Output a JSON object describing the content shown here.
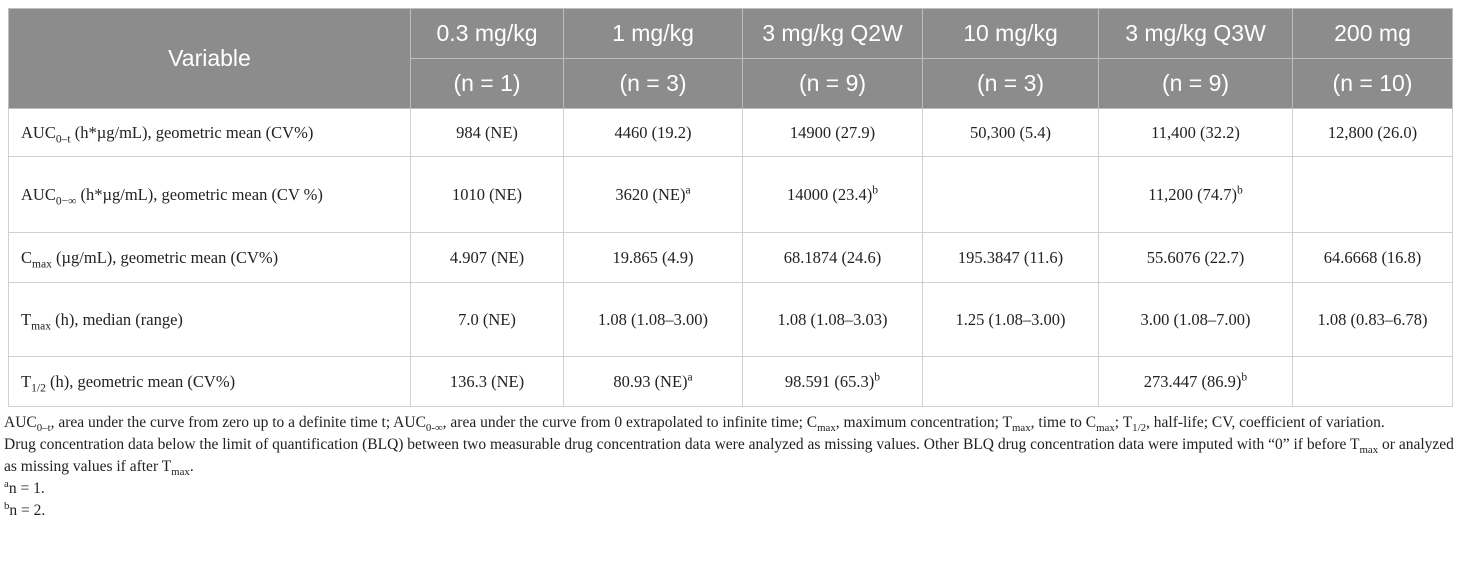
{
  "header": {
    "variable": "Variable",
    "columns": [
      {
        "dose": "0.3 mg/kg",
        "n": "(n = 1)"
      },
      {
        "dose": "1 mg/kg",
        "n": "(n = 3)"
      },
      {
        "dose": "3 mg/kg Q2W",
        "n": "(n = 9)"
      },
      {
        "dose": "10 mg/kg",
        "n": "(n = 3)"
      },
      {
        "dose": "3 mg/kg Q3W",
        "n": "(n = 9)"
      },
      {
        "dose": "200 mg",
        "n": "(n = 10)"
      }
    ]
  },
  "rows": [
    {
      "label": [
        {
          "text": "AUC"
        },
        {
          "sub": "0–t"
        },
        {
          "text": " (h*µg/mL), geometric mean (CV%)"
        }
      ],
      "cells": [
        [
          {
            "text": "984 (NE)"
          }
        ],
        [
          {
            "text": "4460 (19.2)"
          }
        ],
        [
          {
            "text": "14900 (27.9)"
          }
        ],
        [
          {
            "text": "50,300 (5.4)"
          }
        ],
        [
          {
            "text": "11,400 (32.2)"
          }
        ],
        [
          {
            "text": "12,800 (26.0)"
          }
        ]
      ]
    },
    {
      "label": [
        {
          "text": "AUC"
        },
        {
          "sub": "0−∞"
        },
        {
          "text": " (h*µg/mL), geometric mean (CV %)"
        }
      ],
      "cells": [
        [
          {
            "text": "1010 (NE)"
          }
        ],
        [
          {
            "text": "3620 (NE)"
          },
          {
            "sup": "a"
          }
        ],
        [
          {
            "text": "14000 (23.4)"
          },
          {
            "sup": "b"
          }
        ],
        null,
        [
          {
            "text": "11,200 (74.7)"
          },
          {
            "sup": "b"
          }
        ],
        null
      ]
    },
    {
      "label": [
        {
          "text": "C"
        },
        {
          "sub": "max"
        },
        {
          "text": " (µg/mL), geometric mean (CV%)"
        }
      ],
      "cells": [
        [
          {
            "text": "4.907 (NE)"
          }
        ],
        [
          {
            "text": "19.865 (4.9)"
          }
        ],
        [
          {
            "text": "68.1874 (24.6)"
          }
        ],
        [
          {
            "text": "195.3847 (11.6)"
          }
        ],
        [
          {
            "text": "55.6076 (22.7)"
          }
        ],
        [
          {
            "text": "64.6668 (16.8)"
          }
        ]
      ]
    },
    {
      "label": [
        {
          "text": "T"
        },
        {
          "sub": "max"
        },
        {
          "text": " (h), median (range)"
        }
      ],
      "cells": [
        [
          {
            "text": "7.0 (NE)"
          }
        ],
        [
          {
            "text": "1.08 (1.08–3.00)"
          }
        ],
        [
          {
            "text": "1.08 (1.08–3.03)"
          }
        ],
        [
          {
            "text": "1.25 (1.08–3.00)"
          }
        ],
        [
          {
            "text": "3.00 (1.08–7.00)"
          }
        ],
        [
          {
            "text": "1.08 (0.83–6.78)"
          }
        ]
      ]
    },
    {
      "label": [
        {
          "text": "T"
        },
        {
          "sub": "1/2"
        },
        {
          "text": " (h), geometric mean (CV%)"
        }
      ],
      "cells": [
        [
          {
            "text": "136.3 (NE)"
          }
        ],
        [
          {
            "text": "80.93 (NE)"
          },
          {
            "sup": "a"
          }
        ],
        [
          {
            "text": "98.591 (65.3)"
          },
          {
            "sup": "b"
          }
        ],
        null,
        [
          {
            "text": "273.447 (86.9)"
          },
          {
            "sup": "b"
          }
        ],
        null
      ]
    }
  ],
  "footnotes": [
    [
      {
        "text": "AUC"
      },
      {
        "sub": "0–t"
      },
      {
        "text": ", area under the curve from zero up to a definite time t; AUC"
      },
      {
        "sub": "0-∞"
      },
      {
        "text": ", area under the curve from 0 extrapolated to infinite time; C"
      },
      {
        "sub": "max"
      },
      {
        "text": ", maximum concentration; T"
      },
      {
        "sub": "max"
      },
      {
        "text": ", time to C"
      },
      {
        "sub": "max"
      },
      {
        "text": "; T"
      },
      {
        "sub": "1/2"
      },
      {
        "text": ", half-life; CV, coefficient of variation."
      }
    ],
    [
      {
        "text": "Drug concentration data below the limit of quantification (BLQ) between two measurable drug concentration data were analyzed as missing values. Other BLQ drug concentration data were imputed with “0” if before T"
      },
      {
        "sub": "max"
      },
      {
        "text": " or analyzed as missing values if after T"
      },
      {
        "sub": "max"
      },
      {
        "text": "."
      }
    ],
    [
      {
        "sup": "a"
      },
      {
        "text": "n = 1."
      }
    ],
    [
      {
        "sup": "b"
      },
      {
        "text": "n = 2."
      }
    ]
  ]
}
